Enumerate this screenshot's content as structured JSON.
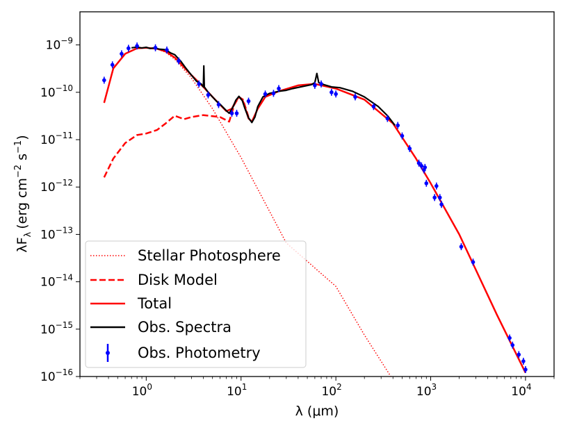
{
  "chart_data": {
    "type": "line",
    "title": "",
    "xlabel": "λ (μm)",
    "ylabel": "λF",
    "ylabel_sub": "λ",
    "ylabel_units_prefix": "(erg cm",
    "ylabel_units_exp1": "−2",
    "ylabel_units_mid": " s",
    "ylabel_units_exp2": "−1",
    "ylabel_units_suffix": ")",
    "x_scale": "log",
    "y_scale": "log",
    "xlim": [
      0.2,
      20000
    ],
    "ylim": [
      1e-16,
      5e-09
    ],
    "x_ticks": [
      {
        "value": 1,
        "base": "10",
        "exp": "0"
      },
      {
        "value": 10,
        "base": "10",
        "exp": "1"
      },
      {
        "value": 100,
        "base": "10",
        "exp": "2"
      },
      {
        "value": 1000,
        "base": "10",
        "exp": "3"
      },
      {
        "value": 10000,
        "base": "10",
        "exp": "4"
      }
    ],
    "y_ticks": [
      {
        "value": 1e-09,
        "base": "10",
        "exp": "−9"
      },
      {
        "value": 1e-10,
        "base": "10",
        "exp": "−10"
      },
      {
        "value": 1e-11,
        "base": "10",
        "exp": "−11"
      },
      {
        "value": 1e-12,
        "base": "10",
        "exp": "−12"
      },
      {
        "value": 1e-13,
        "base": "10",
        "exp": "−13"
      },
      {
        "value": 1e-14,
        "base": "10",
        "exp": "−14"
      },
      {
        "value": 1e-15,
        "base": "10",
        "exp": "−15"
      },
      {
        "value": 1e-16,
        "base": "10",
        "exp": "−16"
      }
    ],
    "legend_position": "lower-left",
    "series": [
      {
        "name": "Stellar Photosphere",
        "style": "dotted",
        "color": "#ff0000",
        "points": [
          [
            0.36,
            6e-11
          ],
          [
            0.45,
            3.2e-10
          ],
          [
            0.6,
            6.5e-10
          ],
          [
            0.8,
            8.5e-10
          ],
          [
            1.0,
            8.7e-10
          ],
          [
            1.3,
            8.2e-10
          ],
          [
            1.6,
            7e-10
          ],
          [
            2.0,
            5e-10
          ],
          [
            3.0,
            2e-10
          ],
          [
            5.0,
            4.5e-11
          ],
          [
            10,
            4.2e-12
          ],
          [
            30,
            6.6e-14
          ],
          [
            100,
            8e-15
          ],
          [
            200,
            7.5e-16
          ],
          [
            380,
            1e-16
          ]
        ]
      },
      {
        "name": "Disk Model",
        "style": "dashed",
        "color": "#ff0000",
        "points": [
          [
            0.36,
            1.6e-12
          ],
          [
            0.45,
            4e-12
          ],
          [
            0.6,
            8.5e-12
          ],
          [
            0.8,
            1.25e-11
          ],
          [
            1.0,
            1.35e-11
          ],
          [
            1.3,
            1.6e-11
          ],
          [
            1.6,
            2.2e-11
          ],
          [
            2.0,
            3.2e-11
          ],
          [
            2.5,
            2.7e-11
          ],
          [
            3.0,
            3e-11
          ],
          [
            4.0,
            3.3e-11
          ],
          [
            6.0,
            3e-11
          ],
          [
            7.5,
            2.4e-11
          ],
          [
            8.5,
            5.5e-11
          ],
          [
            9.5,
            8e-11
          ],
          [
            10.5,
            7e-11
          ],
          [
            12.0,
            3e-11
          ]
        ]
      },
      {
        "name": "Total",
        "style": "solid",
        "color": "#ff0000",
        "points": [
          [
            0.36,
            6e-11
          ],
          [
            0.45,
            3.2e-10
          ],
          [
            0.6,
            6.5e-10
          ],
          [
            0.8,
            8.5e-10
          ],
          [
            1.0,
            8.7e-10
          ],
          [
            1.3,
            8.3e-10
          ],
          [
            1.6,
            7.3e-10
          ],
          [
            2.0,
            5.4e-10
          ],
          [
            3.0,
            2.3e-10
          ],
          [
            4.0,
            1.3e-10
          ],
          [
            5.0,
            8e-11
          ],
          [
            6.0,
            5.5e-11
          ],
          [
            7.0,
            4e-11
          ],
          [
            8.0,
            4.5e-11
          ],
          [
            8.8,
            6.5e-11
          ],
          [
            9.5,
            8e-11
          ],
          [
            10.5,
            6.5e-11
          ],
          [
            12.0,
            2.8e-11
          ],
          [
            13.0,
            2.4e-11
          ],
          [
            15.0,
            4.5e-11
          ],
          [
            18.0,
            8e-11
          ],
          [
            25.0,
            1.05e-10
          ],
          [
            40.0,
            1.4e-10
          ],
          [
            60.0,
            1.5e-10
          ],
          [
            100.0,
            1.2e-10
          ],
          [
            200.0,
            7e-11
          ],
          [
            400.0,
            2.2e-11
          ],
          [
            700.0,
            4e-12
          ],
          [
            1000.0,
            1.2e-12
          ],
          [
            2000.0,
            1e-13
          ],
          [
            5000.0,
            2e-15
          ],
          [
            10000.0,
            1.2e-16
          ]
        ]
      },
      {
        "name": "Obs. Spectra",
        "style": "solid",
        "color": "#000000",
        "points": [
          [
            0.7,
            8.7e-10
          ],
          [
            0.8,
            9e-10
          ],
          [
            0.9,
            8.6e-10
          ],
          [
            1.0,
            8.9e-10
          ],
          [
            1.1,
            8.4e-10
          ],
          [
            1.2,
            8.6e-10
          ],
          [
            1.4,
            8.1e-10
          ],
          [
            1.6,
            7.9e-10
          ],
          [
            1.8,
            6.8e-10
          ],
          [
            2.0,
            6.2e-10
          ],
          [
            2.3,
            4.6e-10
          ],
          [
            2.6,
            3.3e-10
          ],
          [
            3.0,
            2.3e-10
          ],
          [
            3.4,
            1.7e-10
          ],
          [
            3.8,
            1.5e-10
          ],
          [
            4.0,
            1.3e-10
          ],
          [
            4.05,
            3.6e-10
          ],
          [
            4.1,
            1.3e-10
          ],
          [
            4.5,
            1e-10
          ],
          [
            5.0,
            8e-11
          ],
          [
            5.5,
            6.5e-11
          ],
          [
            6.0,
            5.6e-11
          ],
          [
            7.0,
            4.1e-11
          ],
          [
            7.5,
            3.6e-11
          ],
          [
            8.2,
            4.8e-11
          ],
          [
            8.8,
            6.8e-11
          ],
          [
            9.5,
            8.2e-11
          ],
          [
            10.3,
            6.7e-11
          ],
          [
            11.0,
            4.5e-11
          ],
          [
            12.0,
            2.9e-11
          ],
          [
            13.0,
            2.3e-11
          ],
          [
            14.0,
            3e-11
          ],
          [
            15.0,
            5e-11
          ],
          [
            17.0,
            8e-11
          ],
          [
            20.0,
            9.5e-11
          ],
          [
            25.0,
            1.05e-10
          ],
          [
            30.0,
            1.1e-10
          ],
          [
            35.0,
            1.2e-10
          ],
          [
            55.0,
            1.45e-10
          ],
          [
            60.0,
            1.6e-10
          ],
          [
            63.0,
            2.5e-10
          ],
          [
            66.0,
            1.6e-10
          ],
          [
            75.0,
            1.45e-10
          ],
          [
            90.0,
            1.3e-10
          ],
          [
            110.0,
            1.25e-10
          ],
          [
            150.0,
            1.05e-10
          ],
          [
            200.0,
            8e-11
          ],
          [
            280.0,
            5e-11
          ],
          [
            350.0,
            3.2e-11
          ],
          [
            420.0,
            2e-11
          ]
        ]
      }
    ],
    "photometry": {
      "name": "Obs. Photometry",
      "color": "#0000ff",
      "points": [
        [
          0.36,
          1.8e-10
        ],
        [
          0.44,
          3.8e-10
        ],
        [
          0.55,
          6.5e-10
        ],
        [
          0.65,
          8.5e-10
        ],
        [
          0.8,
          9.5e-10
        ],
        [
          1.25,
          8.7e-10
        ],
        [
          1.65,
          7.8e-10
        ],
        [
          2.2,
          4.6e-10
        ],
        [
          3.6,
          1.5e-10
        ],
        [
          4.5,
          8.8e-11
        ],
        [
          5.8,
          5.5e-11
        ],
        [
          8.0,
          3.6e-11
        ],
        [
          9.0,
          3.6e-11
        ],
        [
          12.0,
          6.5e-11
        ],
        [
          18.0,
          9.2e-11
        ],
        [
          22.0,
          9.5e-11
        ],
        [
          25.0,
          1.2e-10
        ],
        [
          60.0,
          1.4e-10
        ],
        [
          70.0,
          1.5e-10
        ],
        [
          90.0,
          1e-10
        ],
        [
          100.0,
          9.2e-11
        ],
        [
          160.0,
          8e-11
        ],
        [
          250.0,
          5e-11
        ],
        [
          350.0,
          2.8e-11
        ],
        [
          450.0,
          2e-11
        ],
        [
          500.0,
          1.2e-11
        ],
        [
          600.0,
          6.5e-12
        ],
        [
          750.0,
          3.2e-12
        ],
        [
          800.0,
          2.8e-12
        ],
        [
          850.0,
          2.3e-12
        ],
        [
          870.0,
          2.6e-12
        ],
        [
          900.0,
          1.2e-12
        ],
        [
          1100.0,
          6e-13
        ],
        [
          1150.0,
          1.05e-12
        ],
        [
          1250.0,
          6e-13
        ],
        [
          1300.0,
          4.3e-13
        ],
        [
          2100.0,
          5.5e-14
        ],
        [
          2800.0,
          2.6e-14
        ],
        [
          6800.0,
          6.5e-16
        ],
        [
          7300.0,
          4.6e-16
        ],
        [
          8500.0,
          2.9e-16
        ],
        [
          9500.0,
          2.1e-16
        ],
        [
          10000.0,
          1.4e-16
        ]
      ]
    }
  }
}
